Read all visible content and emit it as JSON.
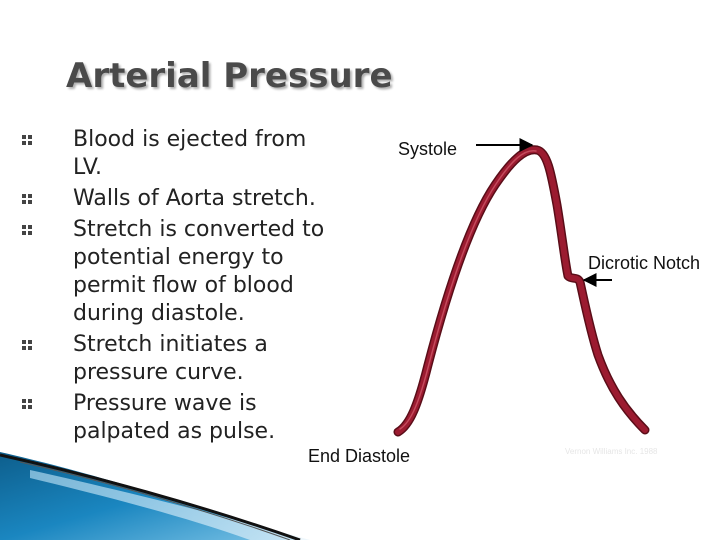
{
  "slide": {
    "title": "Arterial Pressure",
    "bullets": [
      "Blood is ejected from LV.",
      "Walls of Aorta stretch.",
      "Stretch is converted to potential energy to permit flow of blood during diastole.",
      "Stretch initiates a pressure curve.",
      "Pressure wave is palpated as pulse."
    ]
  },
  "diagram": {
    "labels": {
      "systole": "Systole",
      "dicrotic_notch": "Dicrotic Notch",
      "end_diastole": "End Diastole"
    },
    "credit": "Vernon Williams Inc. 1988",
    "colors": {
      "waveform": "#9b1b30",
      "waveform_outline": "#5a0d18",
      "arrow": "#000000",
      "title": "#4a4a4a",
      "accent_blue": "#1a7fb5"
    }
  }
}
